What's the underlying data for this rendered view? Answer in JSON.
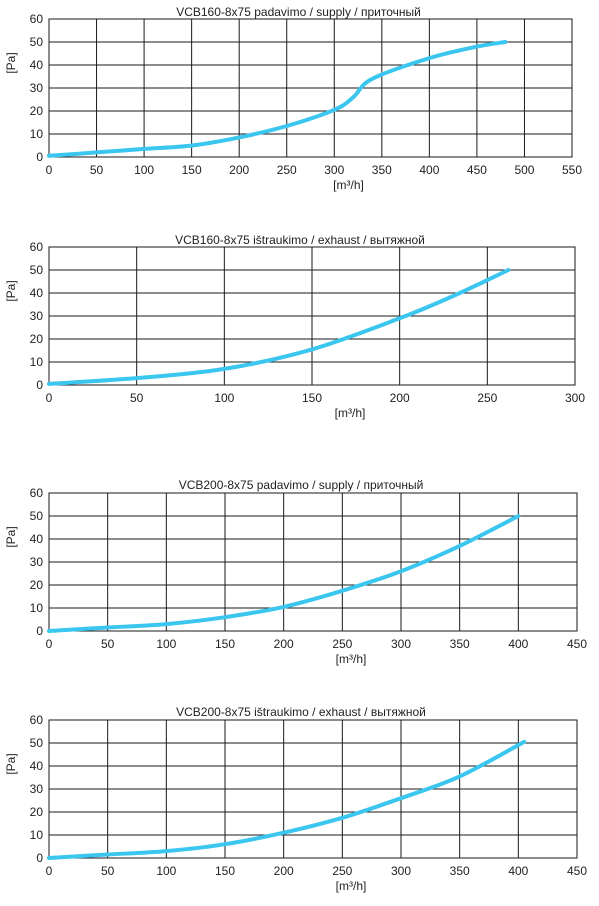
{
  "chart_data": [
    {
      "type": "line",
      "title": "VCB160-8x75 padavimo / supply / приточный",
      "xlabel": "[m³/h]",
      "ylabel": "[Pa]",
      "xlim": [
        0,
        550
      ],
      "ylim": [
        0,
        60
      ],
      "xticks": [
        0,
        50,
        100,
        150,
        200,
        250,
        300,
        350,
        400,
        450,
        500,
        550
      ],
      "yticks": [
        0,
        10,
        20,
        30,
        40,
        50,
        60
      ],
      "grid": true,
      "line_color": "#3ac6ef",
      "x": [
        0,
        50,
        100,
        150,
        200,
        250,
        300,
        320,
        340,
        400,
        450,
        480
      ],
      "y": [
        0.5,
        2,
        3.5,
        5,
        8.5,
        13.5,
        20.5,
        26,
        34,
        43,
        48,
        50
      ]
    },
    {
      "type": "line",
      "title": "VCB160-8x75 ištraukimo / exhaust / вытяжной",
      "xlabel": "[m³/h]",
      "ylabel": "[Pa]",
      "xlim": [
        0,
        300
      ],
      "ylim": [
        0,
        60
      ],
      "xticks": [
        0,
        50,
        100,
        150,
        200,
        250,
        300
      ],
      "yticks": [
        0,
        10,
        20,
        30,
        40,
        50,
        60
      ],
      "grid": true,
      "line_color": "#3ac6ef",
      "x": [
        0,
        50,
        100,
        150,
        200,
        230,
        262
      ],
      "y": [
        0.5,
        3,
        7,
        15.5,
        29,
        38.5,
        50
      ]
    },
    {
      "type": "line",
      "title": "VCB200-8x75 padavimo / supply / приточный",
      "xlabel": "[m³/h]",
      "ylabel": "[Pa]",
      "xlim": [
        0,
        450
      ],
      "ylim": [
        0,
        60
      ],
      "xticks": [
        0,
        50,
        100,
        150,
        200,
        250,
        300,
        350,
        400,
        450
      ],
      "yticks": [
        0,
        10,
        20,
        30,
        40,
        50,
        60
      ],
      "grid": true,
      "line_color": "#3ac6ef",
      "x": [
        0,
        50,
        100,
        150,
        200,
        250,
        300,
        350,
        400
      ],
      "y": [
        0,
        1.5,
        3,
        6,
        10.5,
        17.5,
        26,
        37,
        50
      ]
    },
    {
      "type": "line",
      "title": "VCB200-8x75 ištraukimo / exhaust / вытяжной",
      "xlabel": "[m³/h]",
      "ylabel": "[Pa]",
      "xlim": [
        0,
        450
      ],
      "ylim": [
        0,
        60
      ],
      "xticks": [
        0,
        50,
        100,
        150,
        200,
        250,
        300,
        350,
        400,
        450
      ],
      "yticks": [
        0,
        10,
        20,
        30,
        40,
        50,
        60
      ],
      "grid": true,
      "line_color": "#3ac6ef",
      "x": [
        0,
        50,
        100,
        150,
        200,
        250,
        300,
        350,
        405
      ],
      "y": [
        0,
        1.5,
        3,
        6,
        11,
        17.5,
        26,
        35.5,
        50.5
      ]
    }
  ]
}
